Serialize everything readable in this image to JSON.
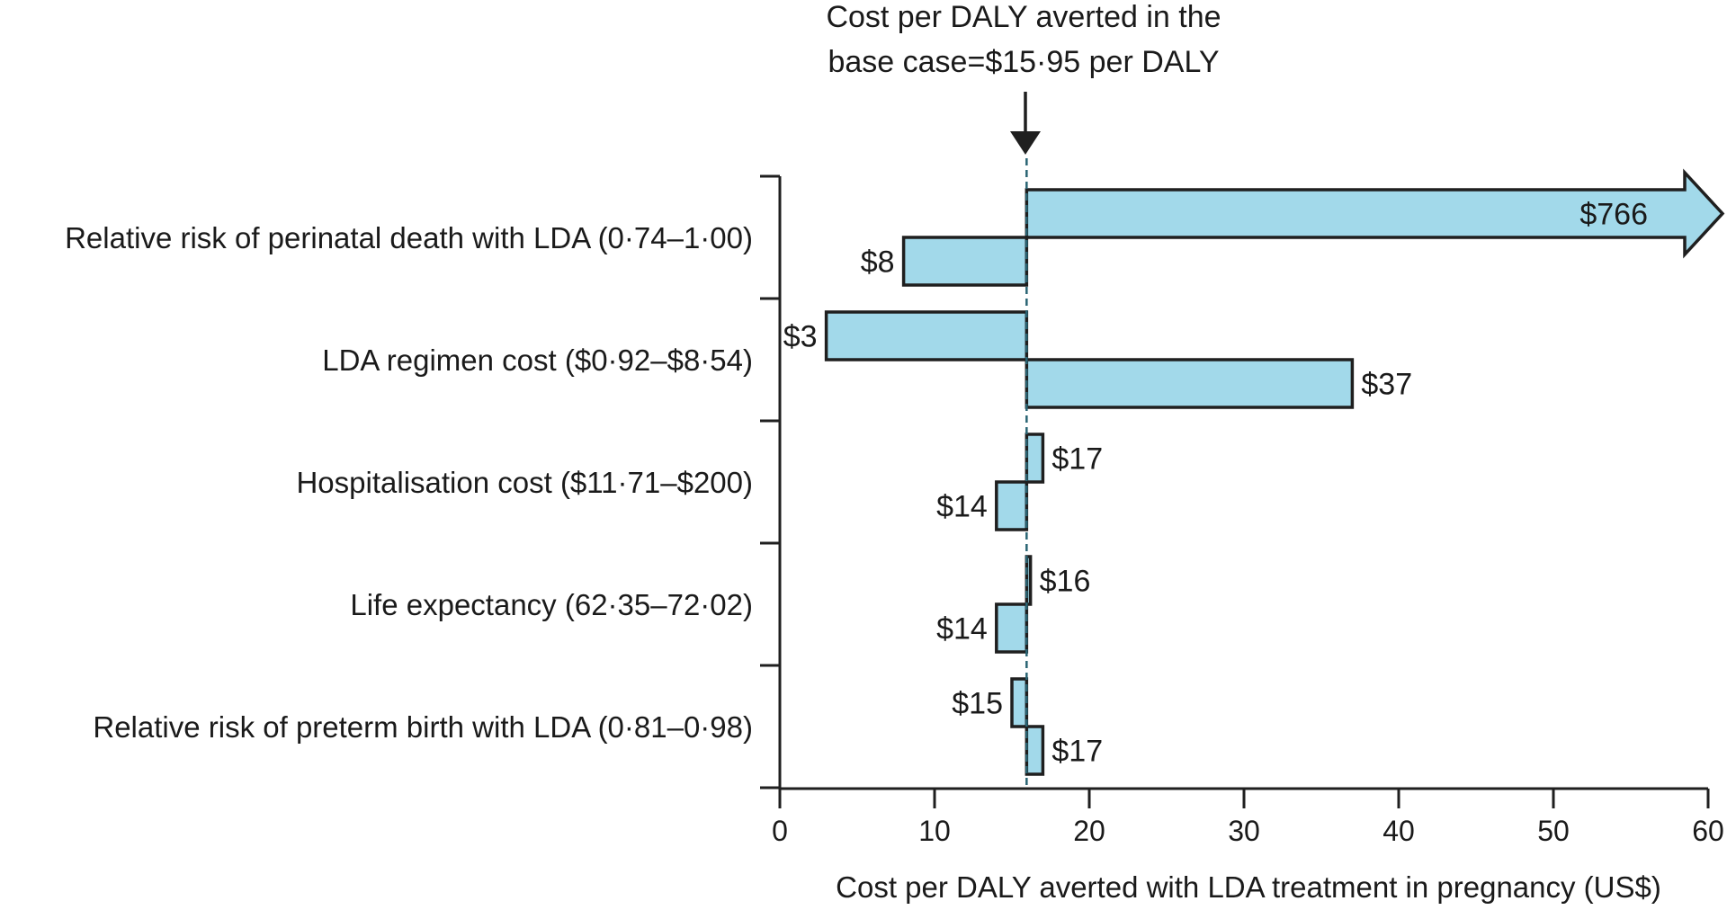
{
  "chart_data": {
    "type": "tornado",
    "annotation": {
      "line1": "Cost per DALY averted in the",
      "line2": "base case=$15·95 per DALY"
    },
    "base_case": 15.95,
    "xlabel": "Cost per DALY averted with LDA treatment in pregnancy (US$)",
    "xlim": [
      0,
      60
    ],
    "xticks": [
      0,
      10,
      20,
      30,
      40,
      50,
      60
    ],
    "xtick_labels": [
      "0",
      "10",
      "20",
      "30",
      "40",
      "50",
      "60"
    ],
    "categories": [
      {
        "label": "Relative risk of perinatal death with LDA (0·74–1·00)",
        "upper": {
          "value": 766,
          "label": "$766",
          "truncated": true
        },
        "lower": {
          "value": 8,
          "label": "$8"
        }
      },
      {
        "label": "LDA regimen cost ($0·92–$8·54)",
        "upper": {
          "value": 3,
          "label": "$3"
        },
        "lower": {
          "value": 37,
          "label": "$37"
        }
      },
      {
        "label": "Hospitalisation cost ($11·71–$200)",
        "upper": {
          "value": 17,
          "label": "$17"
        },
        "lower": {
          "value": 14,
          "label": "$14"
        }
      },
      {
        "label": "Life expectancy (62·35–72·02)",
        "upper": {
          "value": 16.2,
          "label": "$16"
        },
        "lower": {
          "value": 14,
          "label": "$14"
        }
      },
      {
        "label": "Relative risk of preterm birth with LDA (0·81–0·98)",
        "upper": {
          "value": 15,
          "label": "$15"
        },
        "lower": {
          "value": 17,
          "label": "$17"
        }
      }
    ]
  }
}
